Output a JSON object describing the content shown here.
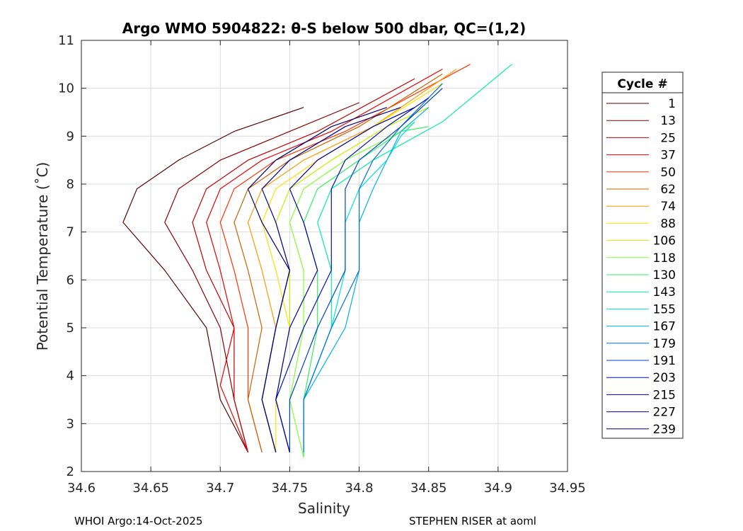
{
  "chart_data": {
    "type": "line",
    "title": "Argo WMO 5904822: θ-S below 500 dbar,  QC=(1,2)",
    "xlabel": "Salinity",
    "ylabel": "Potential Temperature (˚C)",
    "xlim": [
      34.6,
      34.95
    ],
    "ylim": [
      2,
      11
    ],
    "xticks": [
      "34.6",
      "34.65",
      "34.7",
      "34.75",
      "34.8",
      "34.85",
      "34.9",
      "34.95"
    ],
    "yticks": [
      "2",
      "3",
      "4",
      "5",
      "6",
      "7",
      "8",
      "9",
      "10",
      "11"
    ],
    "grid": true,
    "legend": {
      "title": "Cycle #",
      "placement": "right-outside",
      "entries": [
        {
          "label": "1",
          "color": "#5a0000"
        },
        {
          "label": "13",
          "color": "#8b0000"
        },
        {
          "label": "25",
          "color": "#c00000"
        },
        {
          "label": "37",
          "color": "#e80000"
        },
        {
          "label": "50",
          "color": "#ff3300"
        },
        {
          "label": "62",
          "color": "#c86400"
        },
        {
          "label": "74",
          "color": "#ff9900"
        },
        {
          "label": "88",
          "color": "#ffe000"
        },
        {
          "label": "106",
          "color": "#c8f000"
        },
        {
          "label": "118",
          "color": "#80ff30"
        },
        {
          "label": "130",
          "color": "#30f060"
        },
        {
          "label": "143",
          "color": "#00f0a0"
        },
        {
          "label": "155",
          "color": "#00e0e0"
        },
        {
          "label": "167",
          "color": "#00b0f0"
        },
        {
          "label": "179",
          "color": "#0070e0"
        },
        {
          "label": "191",
          "color": "#0040d0"
        },
        {
          "label": "203",
          "color": "#0010c0"
        },
        {
          "label": "215",
          "color": "#0000a0"
        },
        {
          "label": "227",
          "color": "#000090"
        },
        {
          "label": "239",
          "color": "#000070"
        }
      ]
    },
    "series": [
      {
        "name": "1",
        "x": [
          34.72,
          34.7,
          34.69,
          34.66,
          34.63,
          34.64,
          34.67,
          34.71,
          34.76
        ],
        "y": [
          2.4,
          3.5,
          5,
          6.2,
          7.2,
          7.9,
          8.5,
          9.1,
          9.6
        ]
      },
      {
        "name": "13",
        "x": [
          34.72,
          34.71,
          34.7,
          34.68,
          34.66,
          34.67,
          34.7,
          34.75,
          34.8
        ],
        "y": [
          2.4,
          3.5,
          5,
          6.2,
          7.2,
          7.9,
          8.5,
          9.1,
          9.7
        ]
      },
      {
        "name": "25",
        "x": [
          34.72,
          34.71,
          34.71,
          34.69,
          34.68,
          34.69,
          34.72,
          34.77,
          34.84
        ],
        "y": [
          2.4,
          3.5,
          5,
          6.2,
          7.2,
          7.9,
          8.5,
          9.1,
          10.2
        ]
      },
      {
        "name": "37",
        "x": [
          34.72,
          34.7,
          34.71,
          34.7,
          34.69,
          34.7,
          34.73,
          34.78,
          34.86
        ],
        "y": [
          2.4,
          3.8,
          5,
          6.2,
          7.2,
          7.9,
          8.5,
          9.1,
          10.4
        ]
      },
      {
        "name": "50",
        "x": [
          34.73,
          34.72,
          34.72,
          34.71,
          34.7,
          34.71,
          34.74,
          34.79,
          34.88
        ],
        "y": [
          2.4,
          3.5,
          5,
          6.2,
          7.2,
          7.9,
          8.5,
          9.1,
          10.5
        ]
      },
      {
        "name": "62",
        "x": [
          34.73,
          34.72,
          34.73,
          34.72,
          34.71,
          34.72,
          34.75,
          34.8,
          34.86
        ],
        "y": [
          2.4,
          3.5,
          5,
          6.2,
          7.2,
          7.9,
          8.5,
          9.2,
          10.3
        ]
      },
      {
        "name": "74",
        "x": [
          34.74,
          34.73,
          34.74,
          34.73,
          34.72,
          34.73,
          34.76,
          34.81,
          34.87
        ],
        "y": [
          2.4,
          3.5,
          5,
          6.2,
          7.2,
          7.9,
          8.5,
          9.2,
          10.4
        ]
      },
      {
        "name": "88",
        "x": [
          34.74,
          34.74,
          34.75,
          34.74,
          34.73,
          34.74,
          34.77,
          34.81,
          34.86
        ],
        "y": [
          2.4,
          3.5,
          5,
          6.2,
          7.2,
          7.9,
          8.5,
          9.2,
          10.1
        ]
      },
      {
        "name": "106",
        "x": [
          34.75,
          34.74,
          34.75,
          34.75,
          34.74,
          34.75,
          34.78,
          34.82,
          34.85
        ],
        "y": [
          2.4,
          3.5,
          5,
          6.2,
          7.2,
          7.9,
          8.5,
          9.2,
          9.6
        ]
      },
      {
        "name": "118",
        "x": [
          34.76,
          34.75,
          34.76,
          34.76,
          34.75,
          34.76,
          34.79,
          34.83,
          34.84
        ],
        "y": [
          2.3,
          3.5,
          5,
          6.2,
          7.2,
          7.9,
          8.5,
          9.1,
          9.3
        ]
      },
      {
        "name": "130",
        "x": [
          34.76,
          34.76,
          34.77,
          34.77,
          34.76,
          34.77,
          34.8,
          34.83,
          34.85
        ],
        "y": [
          2.3,
          3.5,
          5,
          6.2,
          7.2,
          7.9,
          8.5,
          9.1,
          9.2
        ]
      },
      {
        "name": "143",
        "x": [
          34.76,
          34.76,
          34.78,
          34.78,
          34.77,
          34.78,
          34.81,
          34.86,
          34.91
        ],
        "y": [
          2.4,
          3.5,
          5,
          6.2,
          7.2,
          7.9,
          8.5,
          9.3,
          10.5
        ]
      },
      {
        "name": "155",
        "x": [
          34.76,
          34.76,
          34.78,
          34.79,
          34.79,
          34.8,
          34.82,
          34.83,
          34.84
        ],
        "y": [
          2.4,
          3.5,
          5,
          6.2,
          7.2,
          7.9,
          8.5,
          9.0,
          9.3
        ]
      },
      {
        "name": "167",
        "x": [
          34.76,
          34.76,
          34.79,
          34.8,
          34.8,
          34.81,
          34.82,
          34.83,
          34.85
        ],
        "y": [
          2.4,
          3.5,
          5,
          6.2,
          7.2,
          7.9,
          8.5,
          9.1,
          9.6
        ]
      },
      {
        "name": "179",
        "x": [
          34.76,
          34.76,
          34.78,
          34.8,
          34.8,
          34.8,
          34.81,
          34.83,
          34.86
        ],
        "y": [
          2.4,
          3.5,
          5,
          6.2,
          7.2,
          7.9,
          8.5,
          9.2,
          10.1
        ]
      },
      {
        "name": "191",
        "x": [
          34.75,
          34.75,
          34.77,
          34.79,
          34.79,
          34.79,
          34.8,
          34.83,
          34.86
        ],
        "y": [
          2.4,
          3.5,
          5,
          6.2,
          7.2,
          7.9,
          8.5,
          9.2,
          10.0
        ]
      },
      {
        "name": "203",
        "x": [
          34.75,
          34.74,
          34.76,
          34.78,
          34.78,
          34.78,
          34.79,
          34.82,
          34.85
        ],
        "y": [
          2.4,
          3.5,
          5,
          6.2,
          7.2,
          7.9,
          8.5,
          9.2,
          9.8
        ]
      },
      {
        "name": "215",
        "x": [
          34.75,
          34.74,
          34.75,
          34.77,
          34.76,
          34.75,
          34.77,
          34.81,
          34.84
        ],
        "y": [
          2.4,
          3.5,
          5,
          6.2,
          7.2,
          7.9,
          8.5,
          9.2,
          9.6
        ]
      },
      {
        "name": "227",
        "x": [
          34.74,
          34.73,
          34.74,
          34.75,
          34.74,
          34.73,
          34.75,
          34.79,
          34.83
        ],
        "y": [
          2.4,
          3.5,
          5,
          6.2,
          7.2,
          7.9,
          8.5,
          9.2,
          9.6
        ]
      },
      {
        "name": "239",
        "x": [
          34.74,
          34.73,
          34.74,
          34.75,
          34.73,
          34.72,
          34.74,
          34.78,
          34.82
        ],
        "y": [
          2.4,
          3.5,
          5,
          6.2,
          7.2,
          7.9,
          8.5,
          9.2,
          9.6
        ]
      }
    ]
  },
  "footer": {
    "left": "WHOI Argo:14-Oct-2025",
    "right": "STEPHEN RISER at aoml"
  }
}
